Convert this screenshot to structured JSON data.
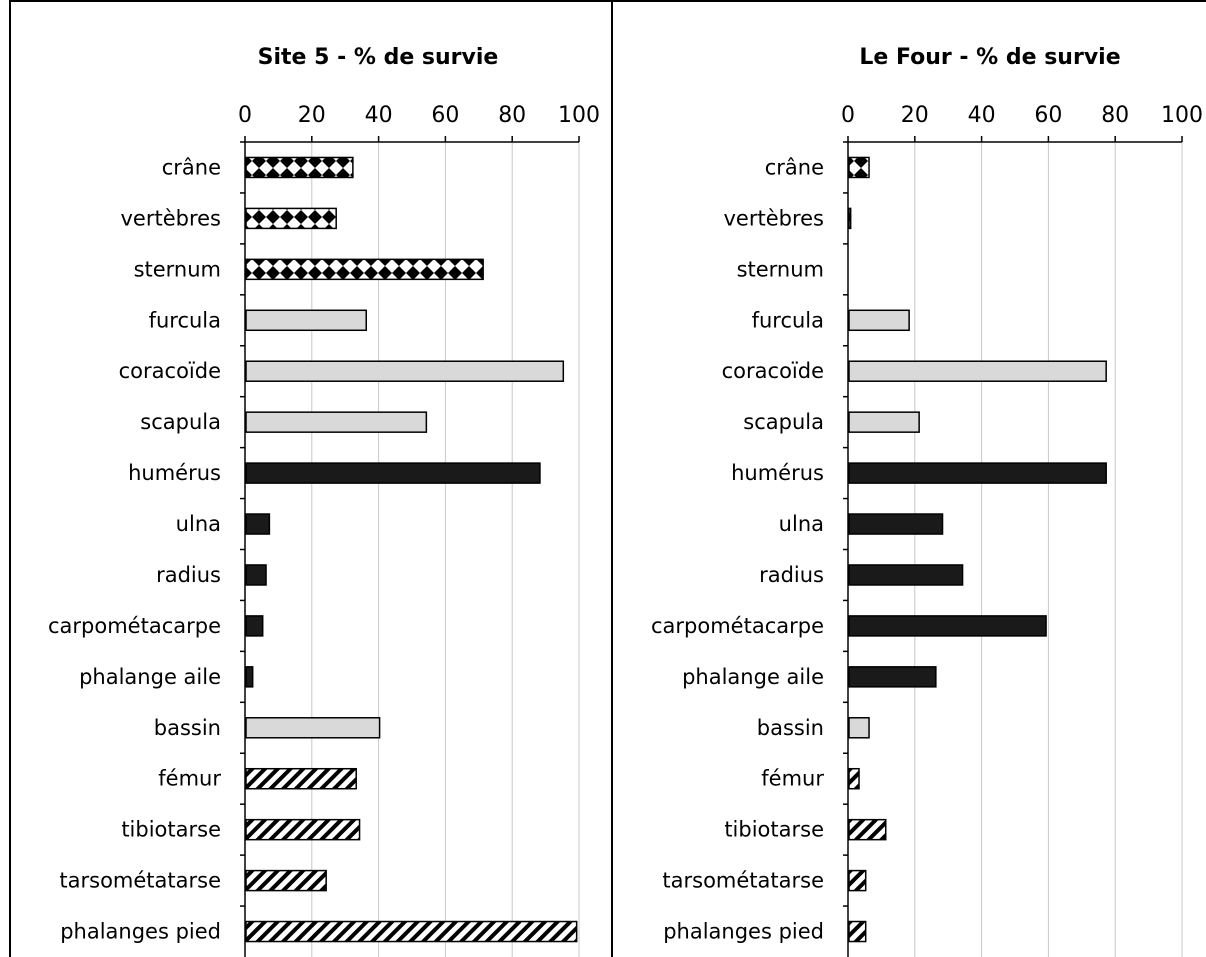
{
  "chart_data": [
    {
      "type": "bar",
      "orientation": "horizontal",
      "title": "Site 5 - % de survie",
      "xlim": [
        0,
        100
      ],
      "x_ticks": [
        "0",
        "20",
        "40",
        "60",
        "80",
        "100"
      ],
      "grid": true,
      "categories": [
        "crâne",
        "vertèbres",
        "sternum",
        "furcula",
        "coracoïde",
        "scapula",
        "humérus",
        "ulna",
        "radius",
        "carpométacarpe",
        "phalange aile",
        "bassin",
        "fémur",
        "tibiotarse",
        "tarsométatarse",
        "phalanges pied"
      ],
      "values": [
        32,
        27,
        71,
        36,
        95,
        54,
        88,
        7,
        6,
        5,
        2,
        40,
        33,
        34,
        24,
        99
      ],
      "fill_styles": [
        "diamond",
        "diamond",
        "diamond",
        "gray",
        "gray",
        "gray",
        "black",
        "black",
        "black",
        "black",
        "black",
        "gray",
        "hatch",
        "hatch",
        "hatch",
        "hatch"
      ]
    },
    {
      "type": "bar",
      "orientation": "horizontal",
      "title": "Le Four - % de survie",
      "xlim": [
        0,
        100
      ],
      "x_ticks": [
        "0",
        "20",
        "40",
        "60",
        "80",
        "100"
      ],
      "grid": true,
      "categories": [
        "crâne",
        "vertèbres",
        "sternum",
        "furcula",
        "coracoïde",
        "scapula",
        "humérus",
        "ulna",
        "radius",
        "carpométacarpe",
        "phalange aile",
        "bassin",
        "fémur",
        "tibiotarse",
        "tarsométatarse",
        "phalanges pied"
      ],
      "values": [
        6,
        0.5,
        0,
        18,
        77,
        21,
        77,
        28,
        34,
        59,
        26,
        6,
        3,
        11,
        5,
        5
      ],
      "fill_styles": [
        "diamond",
        "diamond",
        "diamond",
        "gray",
        "gray",
        "gray",
        "black",
        "black",
        "black",
        "black",
        "black",
        "gray",
        "hatch",
        "hatch",
        "hatch",
        "hatch"
      ]
    }
  ],
  "colors": {
    "gray_fill": "#d9d9d9",
    "black_fill": "#1a1a1a",
    "outline": "#000000",
    "grid": "#c8c8c8"
  }
}
